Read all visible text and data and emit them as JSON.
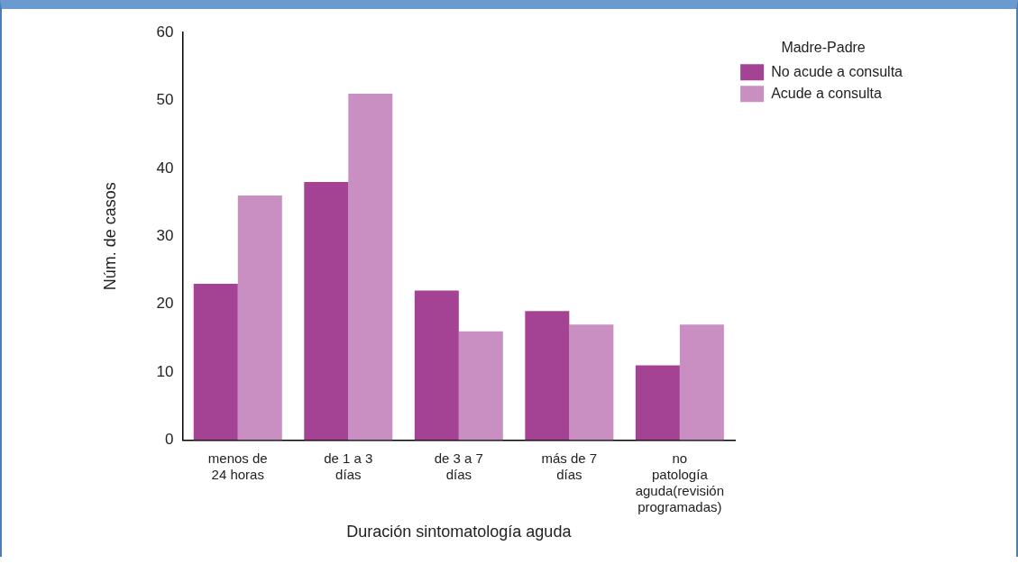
{
  "chart_data": {
    "type": "bar",
    "xlabel": "Duración sintomatología aguda",
    "ylabel": "Núm. de casos",
    "legend_title": "Madre-Padre",
    "categories": [
      "menos de 24 horas",
      "de 1 a 3 días",
      "de 3 a 7 días",
      "más de 7 días",
      "no patología aguda(revisión programadas)"
    ],
    "series": [
      {
        "name": "No acude a consulta",
        "color": "#a44394",
        "values": [
          23,
          38,
          22,
          19,
          11
        ]
      },
      {
        "name": "Acude a consulta",
        "color": "#c98ec2",
        "values": [
          36,
          51,
          16,
          17,
          17
        ]
      }
    ],
    "ylim": [
      0,
      60
    ],
    "yticks": [
      0,
      10,
      20,
      30,
      40,
      50,
      60
    ],
    "grid": false,
    "legend": "top right"
  }
}
